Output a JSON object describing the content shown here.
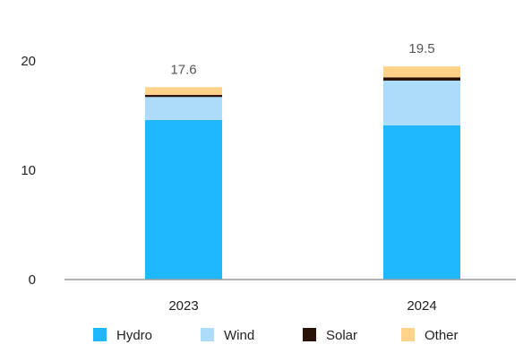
{
  "chart_data": {
    "type": "bar",
    "stacked": true,
    "categories": [
      "2023",
      "2024"
    ],
    "series": [
      {
        "name": "Hydro",
        "color": "#1fb8ff",
        "values": [
          14.6,
          14.1
        ]
      },
      {
        "name": "Wind",
        "color": "#acdcfa",
        "values": [
          2.1,
          4.1
        ]
      },
      {
        "name": "Solar",
        "color": "#2b1208",
        "values": [
          0.2,
          0.3
        ]
      },
      {
        "name": "Other",
        "color": "#ffd28a",
        "values": [
          0.7,
          1.0
        ]
      }
    ],
    "totals": [
      "17.6",
      "19.5"
    ],
    "y_ticks": [
      "0",
      "10",
      "20"
    ],
    "ylim": [
      0,
      20
    ],
    "grid": false,
    "legend_position": "bottom"
  }
}
